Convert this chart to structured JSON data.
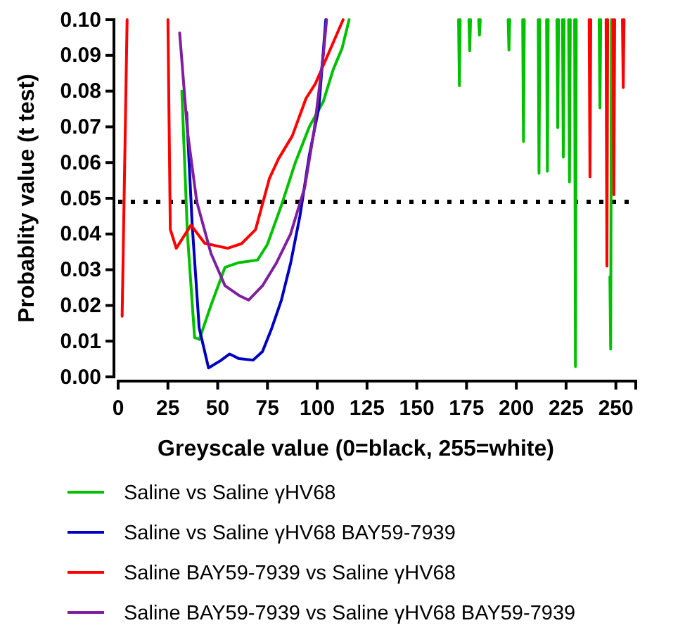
{
  "chart_data": {
    "type": "line",
    "xlabel": "Greyscale value (0=black, 255=white)",
    "ylabel": "Probablity value (t test)",
    "xlim": [
      0,
      260
    ],
    "xticks": [
      0,
      25,
      50,
      75,
      100,
      125,
      150,
      175,
      200,
      225,
      250
    ],
    "ylim": [
      0,
      0.1
    ],
    "yticks": [
      {
        "value": 0,
        "label": "0.00"
      },
      {
        "value": 0.01,
        "label": "0.01"
      },
      {
        "value": 0.02,
        "label": "0.02"
      },
      {
        "value": 0.03,
        "label": "0.03"
      },
      {
        "value": 0.04,
        "label": "0.04"
      },
      {
        "value": 0.05,
        "label": "0.05"
      },
      {
        "value": 0.06,
        "label": "0.06"
      },
      {
        "value": 0.07,
        "label": "0.07"
      },
      {
        "value": 0.08,
        "label": "0.08"
      },
      {
        "value": 0.09,
        "label": "0.09"
      },
      {
        "value": 0.1,
        "label": "0.10"
      }
    ],
    "grid": false,
    "legend": "bottom",
    "line_style": "solid",
    "marker": "none",
    "ref_lines": [
      {
        "axis": "y",
        "value": 0.049,
        "color": "#000000",
        "line_style": "dotted"
      }
    ],
    "series": [
      {
        "name": "Saline vs Saline γHV68",
        "color": "#00c000",
        "x": [
          32,
          34.8,
          38.4,
          40.8,
          46.6,
          53.7,
          60.7,
          70,
          74.9,
          82,
          89,
          96,
          103,
          108,
          112.5,
          116,
          117,
          171,
          171.4,
          171.8,
          172,
          176.2,
          176.6,
          177,
          177.5,
          181.1,
          181.5,
          181.9,
          182.5,
          195.9,
          196.3,
          196.7,
          197.5,
          203.2,
          203.6,
          204,
          205,
          211,
          211.4,
          211.8,
          212.5,
          215.2,
          215.6,
          216,
          217,
          220.4,
          220.8,
          221.2,
          222,
          223.2,
          223.6,
          224,
          224.5,
          226.3,
          226.7,
          227.1,
          228,
          229.3,
          229.7,
          230.1,
          231,
          241.6,
          242,
          242.4,
          243,
          247,
          247.4,
          247.8
        ],
        "values": [
          0.08,
          0.04,
          0.011,
          0.0105,
          0.02,
          0.0307,
          0.032,
          0.0327,
          0.037,
          0.048,
          0.06,
          0.07,
          0.077,
          0.086,
          0.092,
          0.1,
          null,
          0.1,
          0.0815,
          0.1,
          null,
          0.1,
          0.0913,
          0.1,
          null,
          0.1,
          0.0957,
          0.1,
          null,
          0.1,
          0.0915,
          0.1,
          null,
          0.1,
          0.0659,
          0.1,
          null,
          0.1,
          0.057,
          0.1,
          null,
          0.1,
          0.0576,
          0.1,
          null,
          0.1,
          0.0698,
          0.1,
          null,
          0.1,
          0.0615,
          0.1,
          null,
          0.1,
          0.0546,
          0.1,
          null,
          0.1,
          0.0029,
          0.1,
          null,
          0.1,
          0.0753,
          0.1,
          null,
          0.028,
          0.0078,
          0.1
        ]
      },
      {
        "name": "Saline vs Saline γHV68 BAY59-7939",
        "color": "#0000c0",
        "x": [
          34.4,
          37.2,
          40.7,
          45.4,
          51.3,
          56,
          60.7,
          67.8,
          72.5,
          77.2,
          82,
          86.7,
          91.3,
          96,
          100.8,
          104.3
        ],
        "values": [
          0.074,
          0.0425,
          0.0137,
          0.0025,
          0.0045,
          0.0064,
          0.0051,
          0.0047,
          0.0071,
          0.0137,
          0.0215,
          0.032,
          0.045,
          0.062,
          0.0753,
          0.1
        ]
      },
      {
        "name": "Saline BAY59-7939 vs Saline γHV68",
        "color": "#ff0000",
        "x": [
          2,
          4.5,
          10,
          25,
          26.2,
          29.2,
          36.6,
          43.5,
          55,
          62,
          69,
          76,
          80.5,
          87.5,
          94.4,
          99,
          106,
          113,
          114,
          236.6,
          237,
          237.4,
          238,
          245.1,
          245.5,
          245.9,
          246.5,
          248.6,
          249,
          249.4,
          250,
          253.3,
          253.7,
          254.1
        ],
        "values": [
          0.017,
          0.1,
          null,
          0.1,
          0.0413,
          0.036,
          0.0425,
          0.0374,
          0.036,
          0.0373,
          0.0412,
          0.0556,
          0.061,
          0.0675,
          0.078,
          0.082,
          0.091,
          0.1,
          null,
          0.1,
          0.056,
          0.1,
          null,
          0.1,
          0.031,
          0.1,
          null,
          0.1,
          0.051,
          0.1,
          null,
          0.1,
          0.081,
          0.1
        ]
      },
      {
        "name": "Saline BAY59-7939 vs Saline γHV68 BAY59-7939",
        "color": "#7f1fa0",
        "x": [
          30.9,
          34.8,
          39.5,
          46.6,
          53.7,
          60.7,
          65.5,
          72.5,
          79.6,
          86.6,
          93.7,
          98.4,
          103,
          104.7
        ],
        "values": [
          0.0963,
          0.0688,
          0.049,
          0.0346,
          0.0255,
          0.0228,
          0.0215,
          0.0255,
          0.032,
          0.04,
          0.053,
          0.0688,
          0.0898,
          0.1
        ]
      }
    ]
  }
}
